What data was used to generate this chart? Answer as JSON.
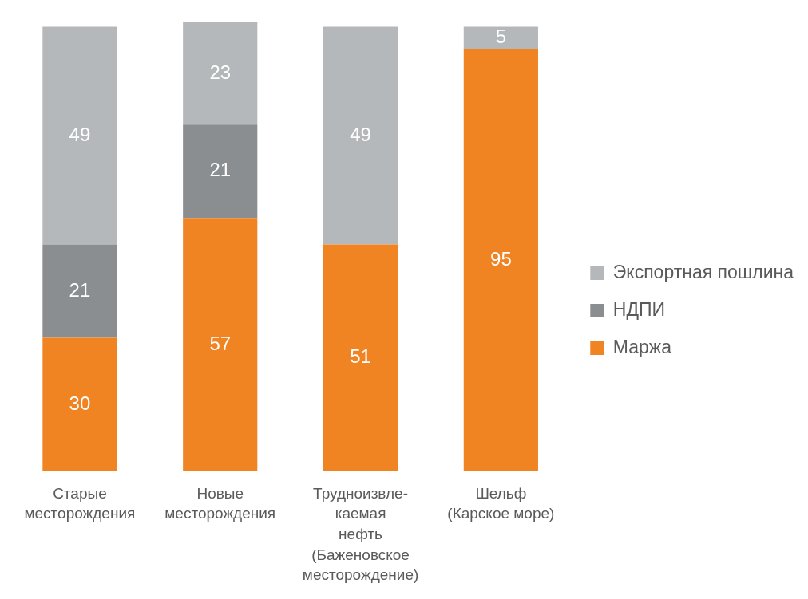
{
  "chart_data": {
    "type": "bar",
    "stacked": true,
    "categories": [
      "Старые\nместорождения",
      "Новые\nместорождения",
      "Трудноизвле-\nкаемая\nнефть\n(Баженовское\nместорождение)",
      "Шельф\n(Карское море)"
    ],
    "series": [
      {
        "name": "Маржа",
        "color": "#f08322",
        "values": [
          30,
          57,
          51,
          95
        ]
      },
      {
        "name": "НДПИ",
        "color": "#8b8e91",
        "values": [
          21,
          21,
          null,
          null
        ]
      },
      {
        "name": "Экспортная пошлина",
        "color": "#b5b8bb",
        "values": [
          49,
          23,
          49,
          5
        ]
      }
    ],
    "ylim": [
      0,
      101
    ],
    "data_labels": true,
    "legend": "right",
    "tick_labels": "x"
  }
}
